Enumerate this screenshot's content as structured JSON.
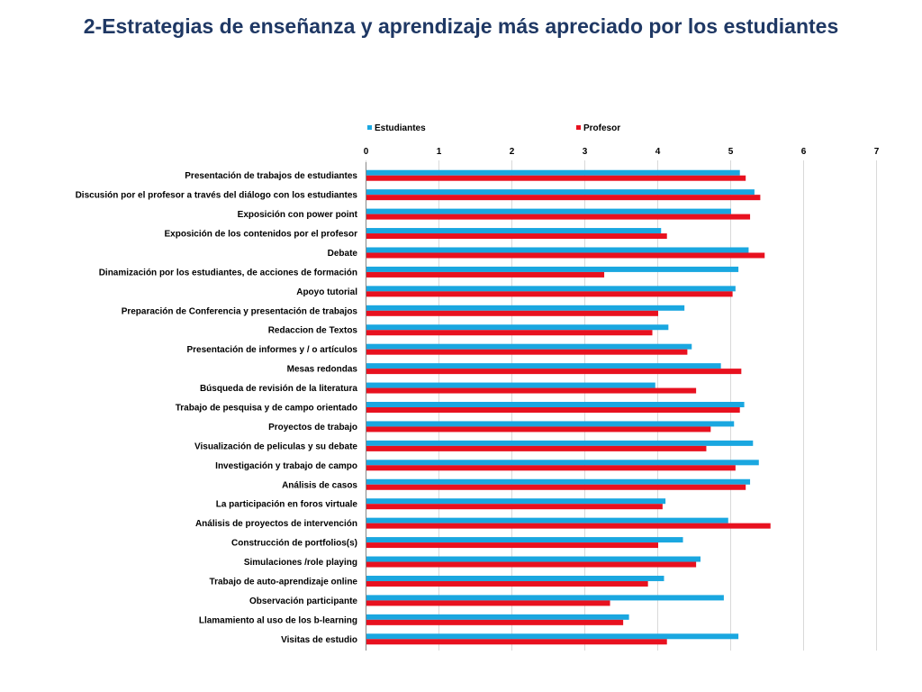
{
  "chart_data": {
    "type": "bar",
    "orientation": "horizontal",
    "title": "2-Estrategias de enseñanza y aprendizaje más apreciado por los estudiantes",
    "xlim": [
      0,
      7
    ],
    "xticks": [
      "0",
      "1",
      "2",
      "3",
      "4",
      "5",
      "6",
      "7"
    ],
    "grid": true,
    "legend_position": "top",
    "categories": [
      "Presentación de trabajos de estudiantes",
      "Discusión por el profesor a través del diálogo con los estudiantes",
      "Exposición con power point",
      "Exposición de los contenidos por el profesor",
      "Debate",
      "Dinamización por los estudiantes, de acciones de formación",
      "Apoyo tutorial",
      "Preparación de Conferencia y presentación de trabajos",
      "Redaccion de Textos",
      "Presentación de informes y / o artículos",
      "Mesas redondas",
      "Búsqueda de revisión de la literatura",
      "Trabajo de pesquisa y de campo orientado",
      "Proyectos de trabajo",
      "Visualización de peliculas y su debate",
      "Investigación y trabajo de campo",
      "Análisis de casos",
      "La participación en foros virtuale",
      "Análisis de proyectos de intervención",
      "Construcción de portfolios(s)",
      "Simulaciones /role playing",
      "Trabajo de auto-aprendizaje online",
      "Observación participante",
      "Llamamiento al uso de los b-learning",
      "Visitas de estudio"
    ],
    "series": [
      {
        "name": "Estudiantes",
        "color": "#1aa7e0",
        "values": [
          5.12,
          5.32,
          5.0,
          4.04,
          5.24,
          5.1,
          5.06,
          4.36,
          4.14,
          4.46,
          4.86,
          3.96,
          5.18,
          5.04,
          5.3,
          5.38,
          5.26,
          4.1,
          4.96,
          4.34,
          4.58,
          4.08,
          4.9,
          3.6,
          5.1
        ]
      },
      {
        "name": "Profesor",
        "color": "#e8111f",
        "values": [
          5.2,
          5.4,
          5.26,
          4.12,
          5.46,
          3.26,
          5.02,
          4.0,
          3.92,
          4.4,
          5.14,
          4.52,
          5.12,
          4.72,
          4.66,
          5.06,
          5.2,
          4.06,
          5.54,
          4.0,
          4.52,
          3.86,
          3.34,
          3.52,
          4.12
        ]
      }
    ]
  }
}
